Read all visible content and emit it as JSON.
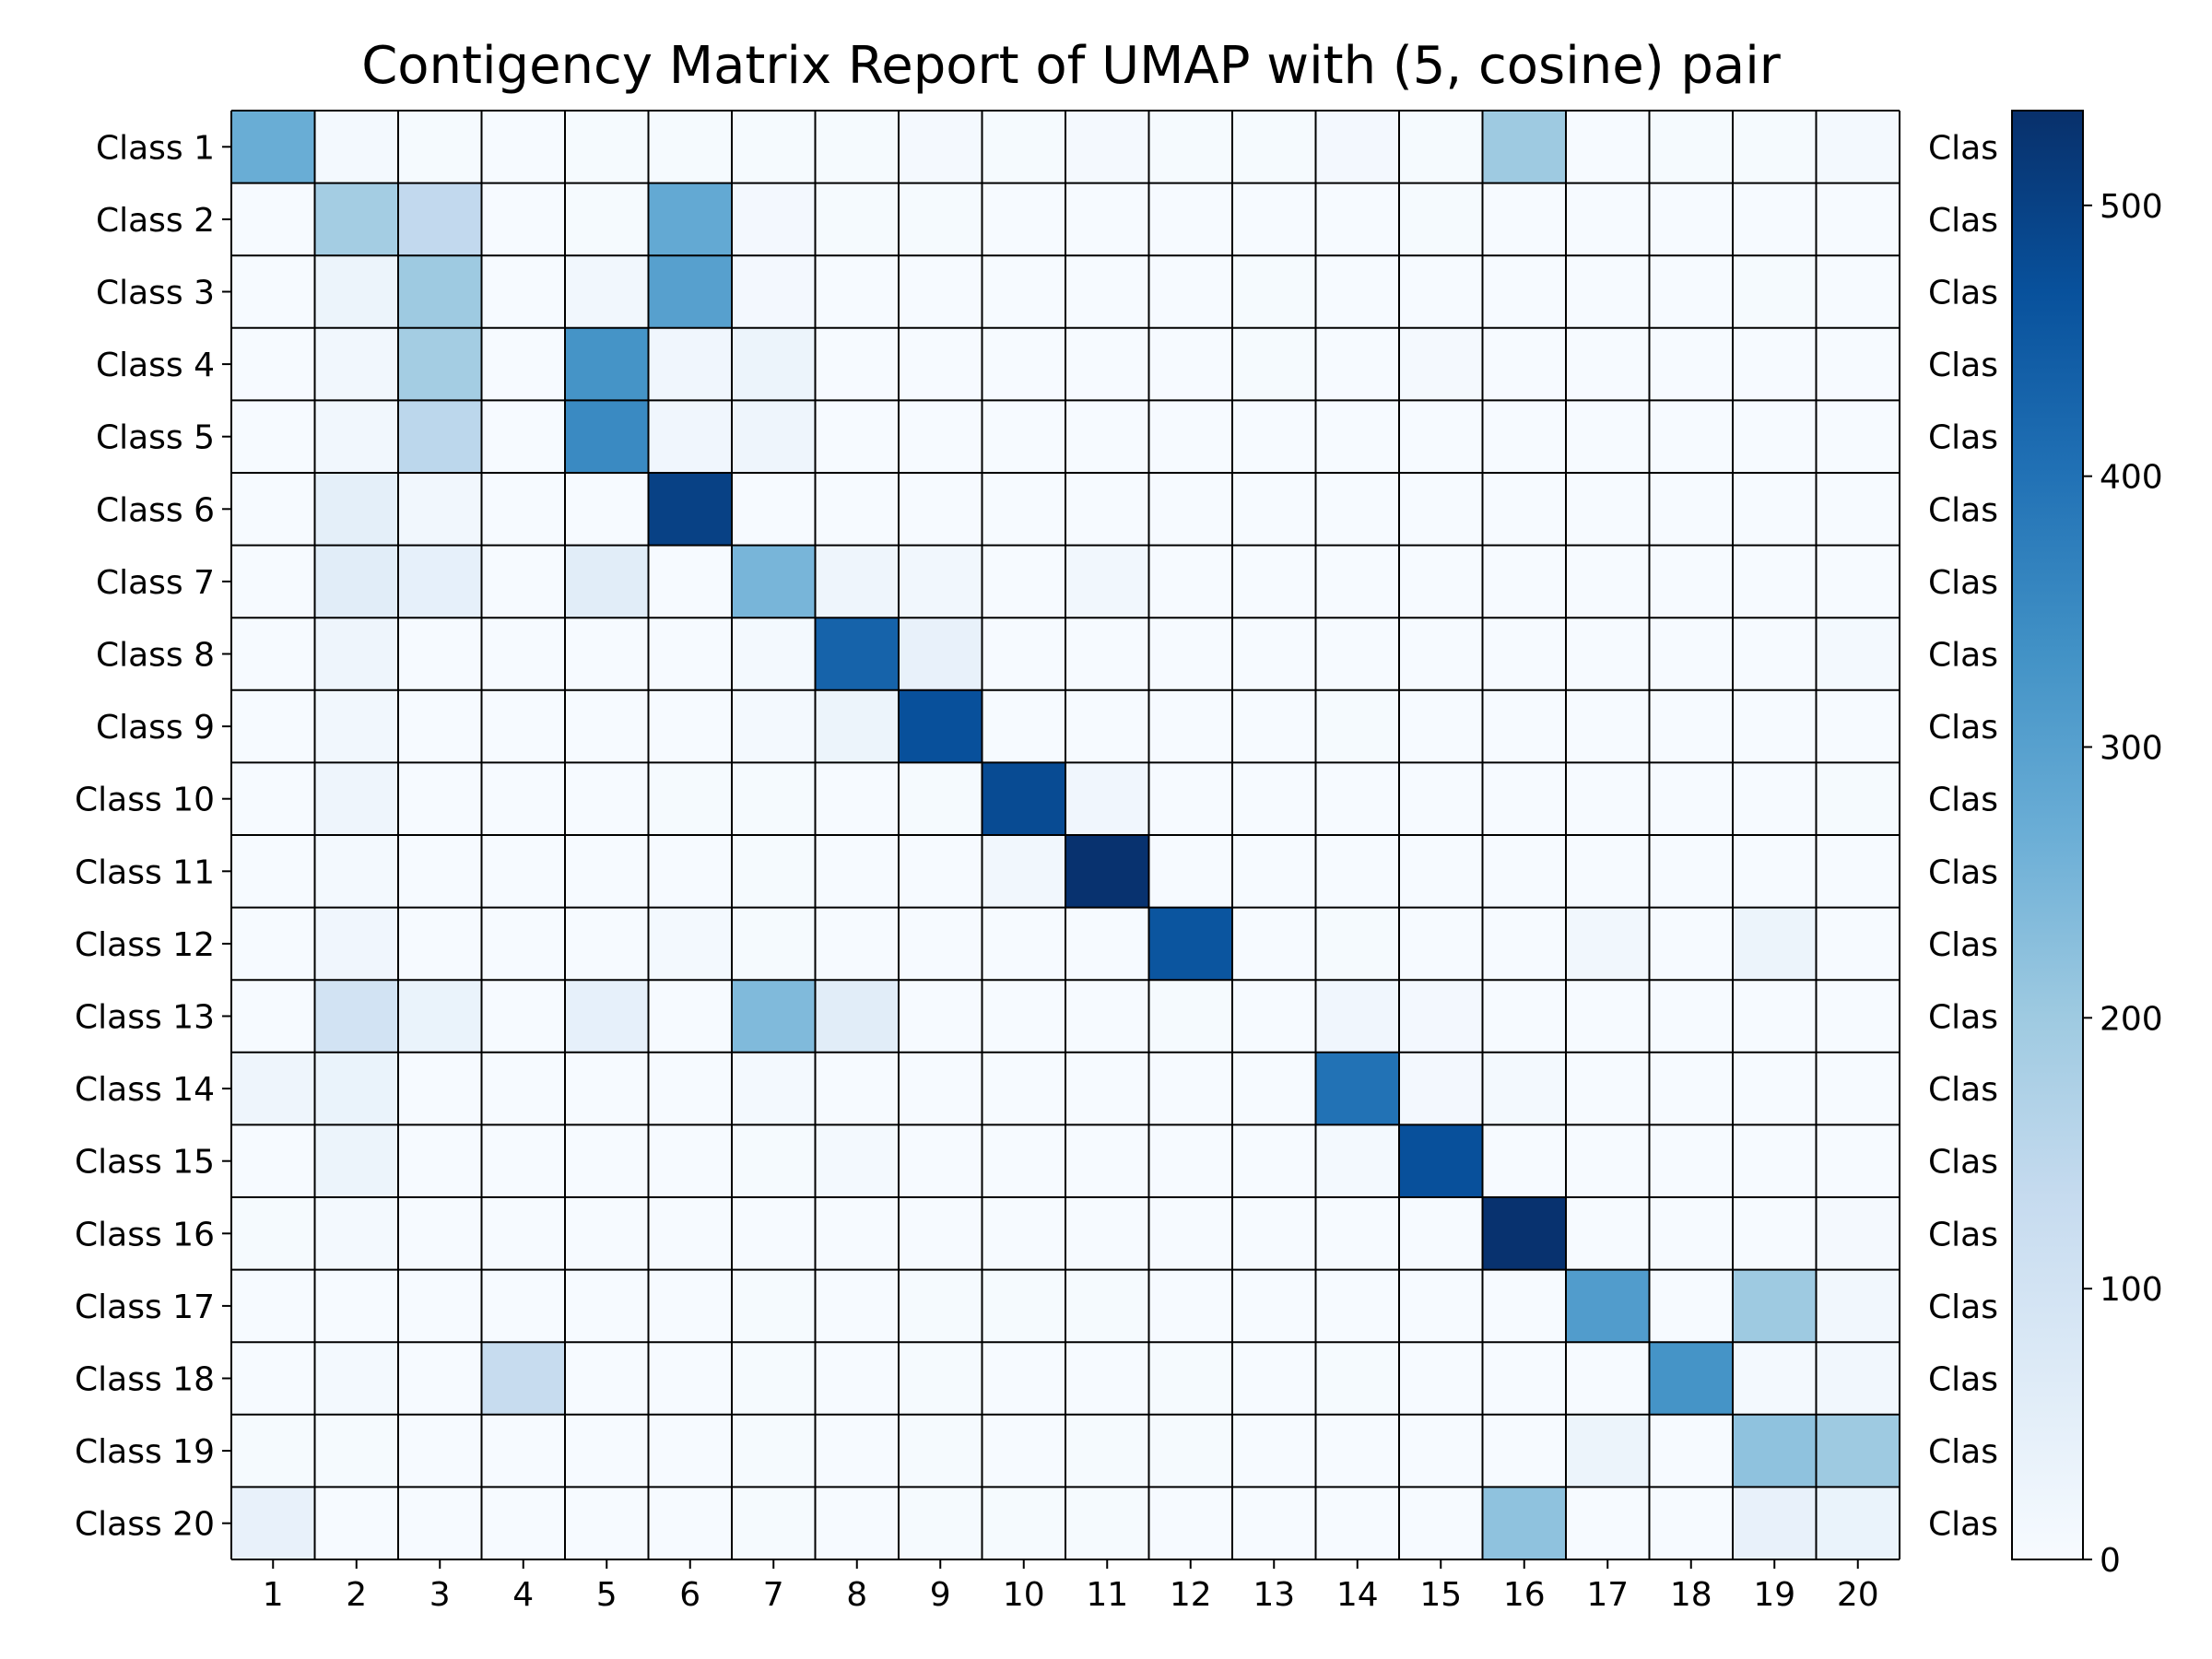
{
  "chart_data": {
    "type": "heatmap",
    "title": "Contigency Matrix Report of UMAP with (5, cosine) pair",
    "colormap": "Blues",
    "row_labels": [
      "Class 1",
      "Class 2",
      "Class 3",
      "Class 4",
      "Class 5",
      "Class 6",
      "Class 7",
      "Class 8",
      "Class 9",
      "Class 10",
      "Class 11",
      "Class 12",
      "Class 13",
      "Class 14",
      "Class 15",
      "Class 16",
      "Class 17",
      "Class 18",
      "Class 19",
      "Class 20"
    ],
    "right_labels": [
      "Clas",
      "Clas",
      "Clas",
      "Clas",
      "Clas",
      "Clas",
      "Clas",
      "Clas",
      "Clas",
      "Clas",
      "Clas",
      "Clas",
      "Clas",
      "Clas",
      "Clas",
      "Clas",
      "Clas",
      "Clas",
      "Clas",
      "Clas"
    ],
    "col_labels": [
      "1",
      "2",
      "3",
      "4",
      "5",
      "6",
      "7",
      "8",
      "9",
      "10",
      "11",
      "12",
      "13",
      "14",
      "15",
      "16",
      "17",
      "18",
      "19",
      "20"
    ],
    "values": [
      [
        270,
        10,
        5,
        3,
        5,
        5,
        5,
        5,
        8,
        5,
        8,
        5,
        5,
        12,
        5,
        200,
        3,
        5,
        5,
        10
      ],
      [
        3,
        190,
        140,
        3,
        5,
        280,
        12,
        5,
        5,
        3,
        3,
        3,
        3,
        3,
        5,
        3,
        3,
        3,
        3,
        3
      ],
      [
        3,
        30,
        200,
        3,
        15,
        300,
        12,
        3,
        3,
        3,
        3,
        3,
        5,
        3,
        3,
        3,
        3,
        3,
        5,
        3
      ],
      [
        3,
        15,
        190,
        3,
        330,
        20,
        30,
        3,
        3,
        3,
        3,
        3,
        5,
        3,
        8,
        3,
        3,
        3,
        3,
        3
      ],
      [
        3,
        15,
        150,
        3,
        350,
        20,
        25,
        3,
        3,
        3,
        3,
        3,
        3,
        3,
        3,
        3,
        3,
        3,
        3,
        3
      ],
      [
        3,
        50,
        15,
        3,
        3,
        500,
        3,
        3,
        3,
        3,
        3,
        3,
        3,
        3,
        3,
        3,
        3,
        3,
        3,
        3
      ],
      [
        3,
        60,
        45,
        3,
        60,
        3,
        250,
        25,
        15,
        3,
        15,
        3,
        3,
        3,
        3,
        3,
        3,
        3,
        3,
        3
      ],
      [
        3,
        25,
        3,
        3,
        3,
        3,
        10,
        430,
        40,
        3,
        3,
        3,
        3,
        3,
        3,
        3,
        3,
        3,
        3,
        10
      ],
      [
        3,
        15,
        3,
        3,
        3,
        3,
        10,
        30,
        470,
        3,
        3,
        3,
        3,
        5,
        3,
        3,
        3,
        3,
        3,
        3
      ],
      [
        3,
        25,
        3,
        3,
        3,
        5,
        5,
        3,
        5,
        480,
        20,
        3,
        3,
        3,
        3,
        3,
        3,
        3,
        3,
        5
      ],
      [
        3,
        10,
        3,
        3,
        3,
        3,
        5,
        3,
        3,
        15,
        530,
        3,
        3,
        3,
        3,
        3,
        3,
        3,
        3,
        3
      ],
      [
        3,
        20,
        3,
        3,
        3,
        10,
        5,
        3,
        3,
        3,
        3,
        460,
        3,
        5,
        3,
        3,
        15,
        3,
        30,
        3
      ],
      [
        3,
        100,
        35,
        3,
        45,
        3,
        240,
        60,
        3,
        3,
        3,
        5,
        3,
        20,
        12,
        3,
        3,
        3,
        3,
        3
      ],
      [
        25,
        35,
        3,
        3,
        3,
        3,
        10,
        3,
        3,
        3,
        3,
        3,
        3,
        400,
        12,
        10,
        3,
        3,
        3,
        3
      ],
      [
        3,
        30,
        3,
        3,
        3,
        3,
        5,
        10,
        3,
        3,
        3,
        3,
        3,
        10,
        470,
        3,
        3,
        3,
        3,
        3
      ],
      [
        5,
        10,
        3,
        3,
        3,
        3,
        3,
        3,
        3,
        3,
        3,
        3,
        3,
        3,
        3,
        530,
        3,
        3,
        3,
        8
      ],
      [
        3,
        3,
        3,
        3,
        3,
        3,
        5,
        3,
        5,
        5,
        5,
        3,
        3,
        3,
        3,
        3,
        310,
        3,
        200,
        15
      ],
      [
        3,
        10,
        3,
        130,
        3,
        3,
        5,
        3,
        5,
        3,
        3,
        5,
        3,
        5,
        3,
        3,
        3,
        330,
        10,
        15
      ],
      [
        5,
        5,
        3,
        3,
        3,
        3,
        5,
        3,
        5,
        3,
        5,
        5,
        3,
        3,
        3,
        3,
        30,
        3,
        220,
        200
      ],
      [
        40,
        3,
        3,
        3,
        3,
        3,
        5,
        3,
        5,
        5,
        5,
        3,
        3,
        3,
        3,
        220,
        3,
        3,
        40,
        35
      ]
    ],
    "colorbar": {
      "min": 0,
      "max": 535,
      "ticks": [
        0,
        100,
        200,
        300,
        400,
        500
      ],
      "tick_labels": [
        "0",
        "100",
        "200",
        "300",
        "400",
        "500"
      ]
    },
    "xlabel": "",
    "ylabel": ""
  }
}
